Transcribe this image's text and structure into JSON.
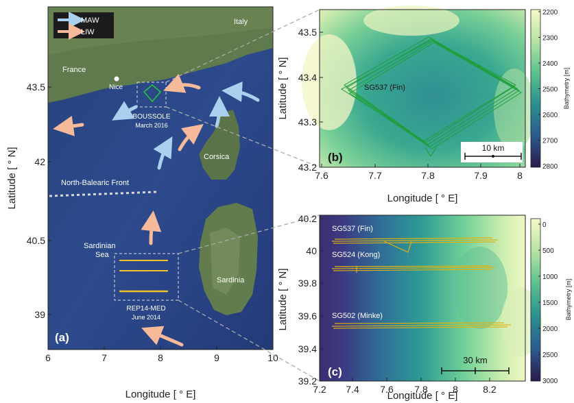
{
  "panel_a": {
    "panel_label": "(a)",
    "xlabel": "Longitude [ ° E]",
    "ylabel": "Latitude [ ° N]",
    "xticks": [
      "6",
      "7",
      "8",
      "9",
      "10"
    ],
    "yticks": [
      "43.5",
      "42",
      "40.5",
      "39"
    ],
    "legend": [
      {
        "label": "MAW",
        "color": "#a9d0ef"
      },
      {
        "label": "LIW",
        "color": "#f6b99a"
      }
    ],
    "places": {
      "italy": "Italy",
      "france": "France",
      "nice": "Nice",
      "corsica": "Corsica",
      "sardinia": "Sardinia",
      "sardinian_sea": "Sardinian",
      "sardinian_sea_2": "Sea",
      "front": "North-Balearic Front",
      "boussole": "BOUSSOLE",
      "boussole_date": "March 2016",
      "rep14": "REP14-MED",
      "rep14_date": "June 2014"
    },
    "colors": {
      "sea": "#2a4585",
      "land": "#5f7a4c",
      "land_light": "#8a9a6e",
      "boussole_track": "#27c93c",
      "rep_track": "#f2c229"
    }
  },
  "panel_b": {
    "panel_label": "(b)",
    "xlabel": "Longitude [ ° E]",
    "ylabel": "Latitude [ ° N]",
    "xticks": [
      "7.6",
      "7.7",
      "7.8",
      "7.9",
      "8"
    ],
    "yticks": [
      "43.5",
      "43.4",
      "43.3",
      "43.2"
    ],
    "track_label": "SG537 (Fin)",
    "scale_label": "10 km",
    "colorbar_title": "Bathymetry [m]",
    "colorbar_ticks": [
      "2200",
      "2300",
      "2400",
      "2500",
      "2600",
      "2700",
      "2800"
    ],
    "track_color": "#1f9e3a"
  },
  "panel_c": {
    "panel_label": "(c)",
    "xlabel": "Longitude [ ° E]",
    "ylabel": "Latitude [ ° N]",
    "xticks": [
      "7.2",
      "7.4",
      "7.6",
      "7.8",
      "8",
      "8.2"
    ],
    "yticks": [
      "40.2",
      "40",
      "39.8",
      "39.6",
      "39.4",
      "39.2"
    ],
    "tracks": [
      {
        "label": "SG537 (Fin)",
        "lat": 40.06
      },
      {
        "label": "SG524 (Kong)",
        "lat": 39.86
      },
      {
        "label": "SG502 (Minke)",
        "lat": 39.46
      }
    ],
    "scale_label": "30 km",
    "colorbar_title": "Bathymetry [m]",
    "colorbar_ticks": [
      "0",
      "500",
      "1000",
      "1500",
      "2000",
      "2500",
      "3000"
    ],
    "track_color": "#e0b20f"
  }
}
